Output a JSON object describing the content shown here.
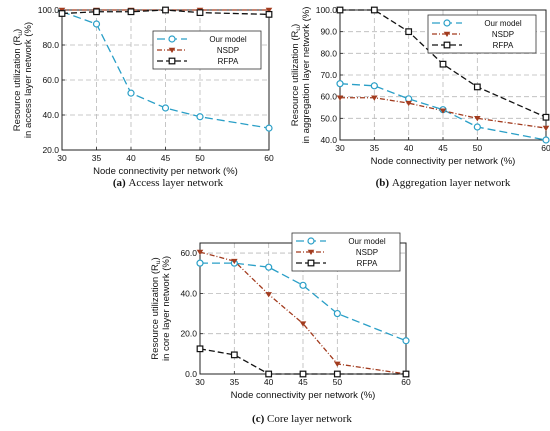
{
  "chart_data": [
    {
      "type": "line",
      "caption_label": "(a)",
      "caption_text": "Access layer network",
      "xlabel": "Node connectivity per network (%)",
      "ylabel_line1": "Resource utilization (R",
      "ylabel_sub": "u",
      "ylabel_line1_end": ")",
      "ylabel_line2": "in access layer network (%)",
      "x": [
        30,
        35,
        40,
        45,
        50,
        60
      ],
      "xlim": [
        30,
        60
      ],
      "ylim": [
        20,
        100
      ],
      "xticks": [
        "30",
        "35",
        "40",
        "45",
        "50",
        "60"
      ],
      "yticks": [
        "20.0",
        "40.0",
        "60.0",
        "80.0",
        "100.0"
      ],
      "grid": true,
      "legend": "top-right",
      "series": [
        {
          "name": "Our model",
          "values": [
            99.0,
            92.0,
            52.5,
            44.0,
            39.0,
            32.5
          ],
          "color": "#2a9fc7",
          "marker": "circle",
          "dash": "8,4"
        },
        {
          "name": "NSDP",
          "values": [
            100.0,
            100.0,
            100.0,
            100.0,
            100.0,
            100.0
          ],
          "color": "#a23b1e",
          "marker": "triangle",
          "dash": "5,2,1,2"
        },
        {
          "name": "RFPA",
          "values": [
            98.0,
            99.0,
            99.0,
            100.0,
            98.5,
            97.5
          ],
          "color": "#111111",
          "marker": "square",
          "dash": "6,3"
        }
      ]
    },
    {
      "type": "line",
      "caption_label": "(b)",
      "caption_text": "Aggregation layer network",
      "xlabel": "Node connectivity per network (%)",
      "ylabel_line1": "Resource utilization (R",
      "ylabel_sub": "u",
      "ylabel_line1_end": ")",
      "ylabel_line2": "in aggregation layer network (%)",
      "x": [
        30,
        35,
        40,
        45,
        50,
        60
      ],
      "xlim": [
        30,
        60
      ],
      "ylim": [
        40,
        100
      ],
      "xticks": [
        "30",
        "35",
        "40",
        "45",
        "50",
        "60"
      ],
      "yticks": [
        "40.0",
        "50.0",
        "60.0",
        "70.0",
        "80.0",
        "90.0",
        "100.0"
      ],
      "grid": true,
      "legend": "top-right",
      "series": [
        {
          "name": "Our model",
          "values": [
            66.0,
            65.0,
            59.0,
            54.0,
            46.0,
            40.0
          ],
          "color": "#2a9fc7",
          "marker": "circle",
          "dash": "8,4"
        },
        {
          "name": "NSDP",
          "values": [
            59.5,
            59.5,
            57.0,
            53.5,
            50.0,
            45.5
          ],
          "color": "#a23b1e",
          "marker": "triangle",
          "dash": "5,2,1,2"
        },
        {
          "name": "RFPA",
          "values": [
            100.0,
            100.0,
            90.0,
            75.0,
            64.5,
            50.5
          ],
          "color": "#111111",
          "marker": "square",
          "dash": "6,3"
        }
      ]
    },
    {
      "type": "line",
      "caption_label": "(c)",
      "caption_text": "Core layer network",
      "xlabel": "Node connectivity per network (%)",
      "ylabel_line1": "Resource utilization (R",
      "ylabel_sub": "u",
      "ylabel_line1_end": ")",
      "ylabel_line2": "in core layer network (%)",
      "x": [
        30,
        35,
        40,
        45,
        50,
        60
      ],
      "xlim": [
        30,
        60
      ],
      "ylim": [
        0,
        65
      ],
      "xticks": [
        "30",
        "35",
        "40",
        "45",
        "50",
        "60"
      ],
      "yticks": [
        "0.0",
        "20.0",
        "40.0",
        "60.0"
      ],
      "grid": true,
      "legend": "top-right",
      "series": [
        {
          "name": "Our model",
          "values": [
            55.0,
            55.0,
            53.0,
            44.0,
            30.0,
            16.5
          ],
          "color": "#2a9fc7",
          "marker": "circle",
          "dash": "8,4"
        },
        {
          "name": "NSDP",
          "values": [
            60.5,
            56.0,
            39.5,
            25.0,
            5.0,
            0.0
          ],
          "color": "#a23b1e",
          "marker": "triangle",
          "dash": "5,2,1,2"
        },
        {
          "name": "RFPA",
          "values": [
            12.5,
            9.5,
            0.0,
            0.0,
            0.0,
            0.0
          ],
          "color": "#111111",
          "marker": "square",
          "dash": "6,3"
        }
      ]
    }
  ]
}
